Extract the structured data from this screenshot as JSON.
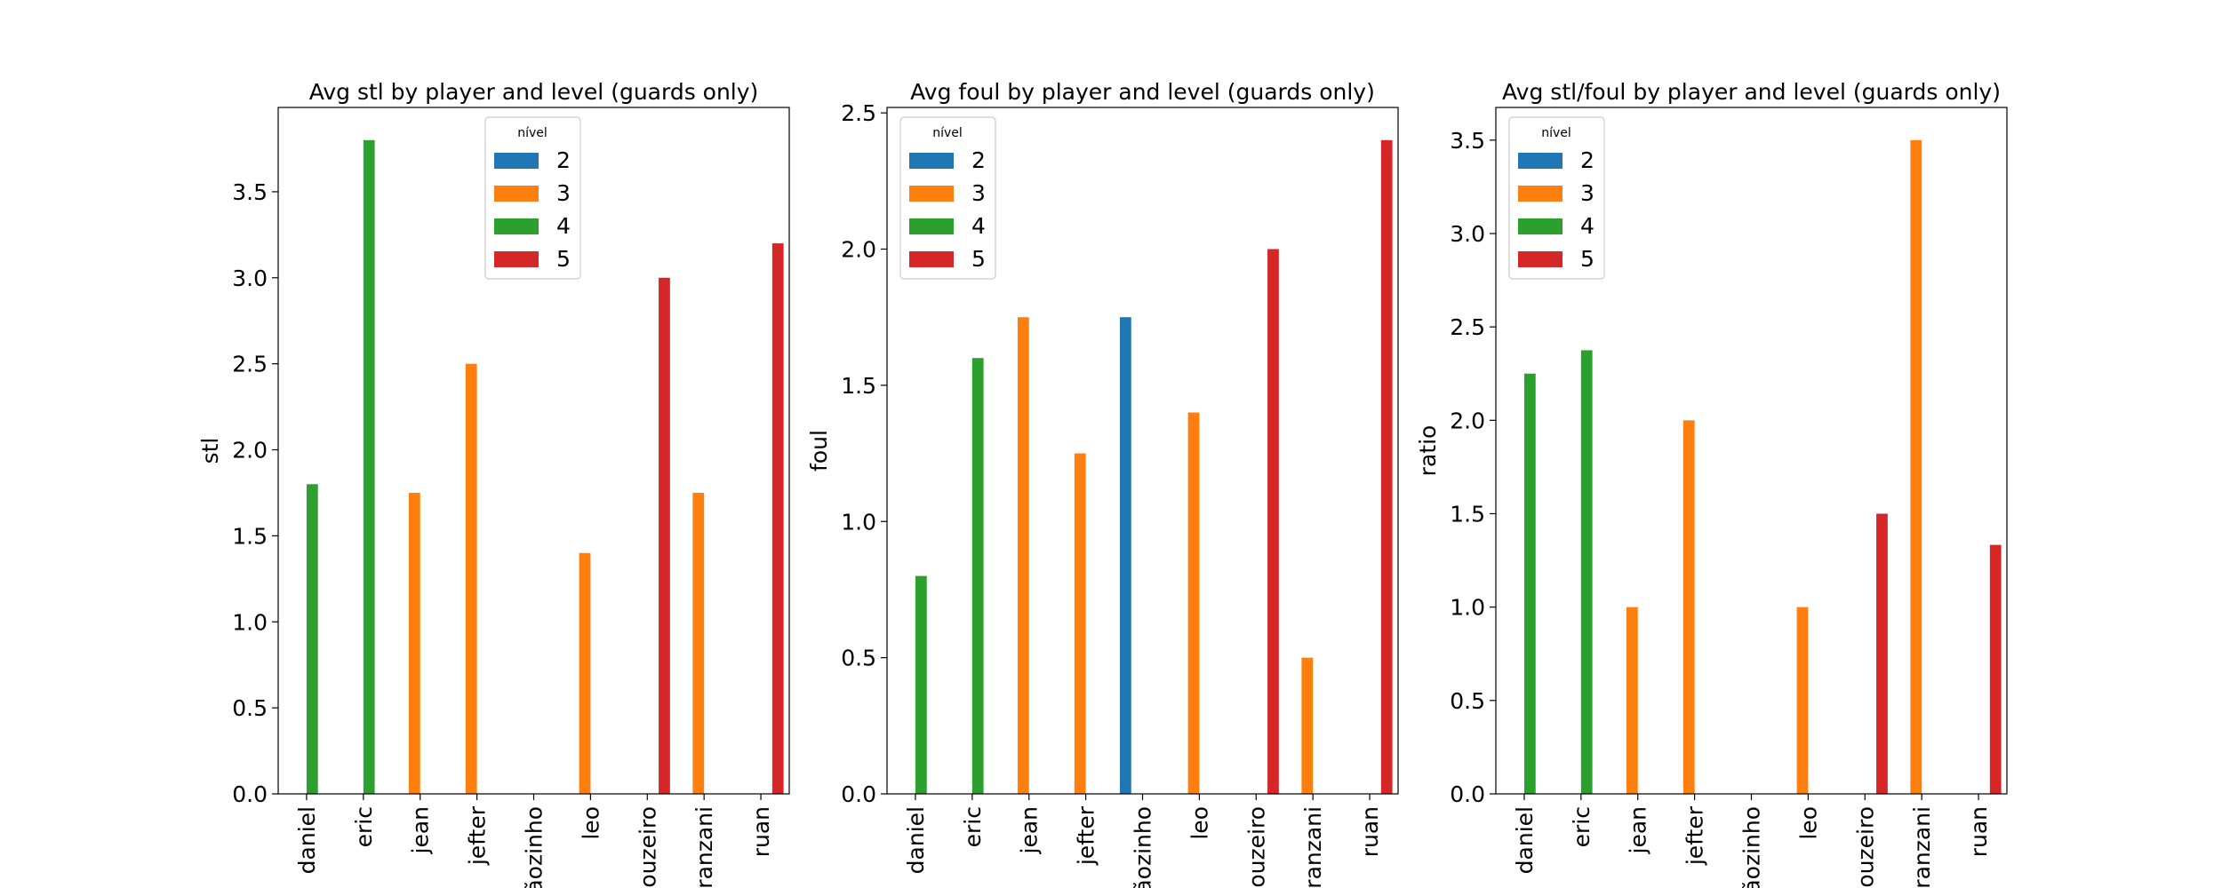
{
  "legend_title": "nível",
  "levels": [
    "2",
    "3",
    "4",
    "5"
  ],
  "colors": {
    "2": "#1f77b4",
    "3": "#ff7f0e",
    "4": "#2ca02c",
    "5": "#d62728"
  },
  "players": [
    "daniel",
    "eric",
    "jean",
    "jefter",
    "ãozinho",
    "leo",
    "louzeiro",
    "ranzani",
    "ruan"
  ],
  "chart_data": [
    {
      "type": "bar",
      "title": "Avg stl by player and level (guards only)",
      "xlabel": "",
      "ylabel": "stl",
      "ylim": [
        0,
        3.99
      ],
      "yticks": [
        0.0,
        0.5,
        1.0,
        1.5,
        2.0,
        2.5,
        3.0,
        3.5
      ],
      "legend": "top-center",
      "series": [
        {
          "name": "2",
          "values": [
            null,
            null,
            null,
            null,
            null,
            null,
            null,
            null,
            null
          ]
        },
        {
          "name": "3",
          "values": [
            null,
            null,
            1.75,
            2.5,
            null,
            1.4,
            null,
            1.75,
            null
          ]
        },
        {
          "name": "4",
          "values": [
            1.8,
            3.8,
            null,
            null,
            null,
            null,
            null,
            null,
            null
          ]
        },
        {
          "name": "5",
          "values": [
            null,
            null,
            null,
            null,
            null,
            null,
            3.0,
            null,
            3.2
          ]
        }
      ]
    },
    {
      "type": "bar",
      "title": "Avg foul by player and level (guards only)",
      "xlabel": "",
      "ylabel": "foul",
      "ylim": [
        0,
        2.52
      ],
      "yticks": [
        0.0,
        0.5,
        1.0,
        1.5,
        2.0,
        2.5
      ],
      "legend": "top-left",
      "series": [
        {
          "name": "2",
          "values": [
            null,
            null,
            null,
            null,
            1.75,
            null,
            null,
            null,
            null
          ]
        },
        {
          "name": "3",
          "values": [
            null,
            null,
            1.75,
            1.25,
            null,
            1.4,
            null,
            0.5,
            null
          ]
        },
        {
          "name": "4",
          "values": [
            0.8,
            1.6,
            null,
            null,
            null,
            null,
            null,
            null,
            null
          ]
        },
        {
          "name": "5",
          "values": [
            null,
            null,
            null,
            null,
            null,
            null,
            2.0,
            null,
            2.4
          ]
        }
      ]
    },
    {
      "type": "bar",
      "title": "Avg stl/foul by player and level (guards only)",
      "xlabel": "",
      "ylabel": "ratio",
      "ylim": [
        0,
        3.675
      ],
      "yticks": [
        0.0,
        0.5,
        1.0,
        1.5,
        2.0,
        2.5,
        3.0,
        3.5
      ],
      "legend": "top-left",
      "series": [
        {
          "name": "2",
          "values": [
            null,
            null,
            null,
            null,
            null,
            null,
            null,
            null,
            null
          ]
        },
        {
          "name": "3",
          "values": [
            null,
            null,
            1.0,
            2.0,
            null,
            1.0,
            null,
            3.5,
            null
          ]
        },
        {
          "name": "4",
          "values": [
            2.25,
            2.375,
            null,
            null,
            null,
            null,
            null,
            null,
            null
          ]
        },
        {
          "name": "5",
          "values": [
            null,
            null,
            null,
            null,
            null,
            null,
            1.5,
            null,
            1.333
          ]
        }
      ]
    }
  ]
}
